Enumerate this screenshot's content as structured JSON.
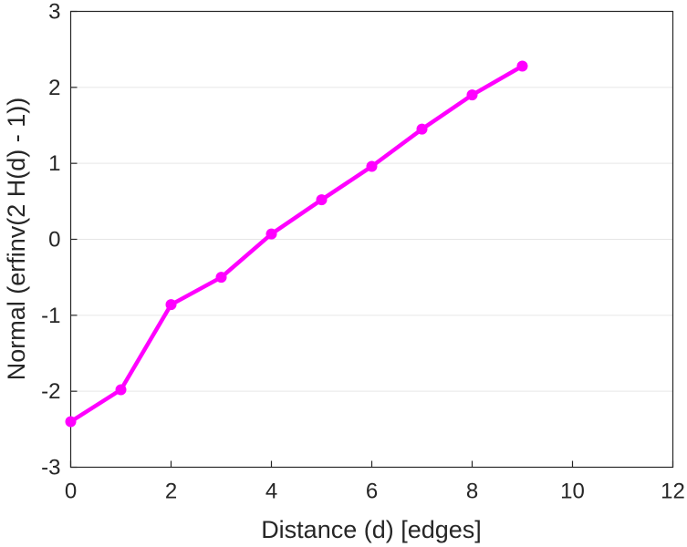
{
  "chart_data": {
    "type": "line",
    "title": "",
    "xlabel": "Distance (d) [edges]",
    "ylabel": "Normal (erfinv(2 H(d) - 1))",
    "xlim": [
      0,
      12
    ],
    "ylim": [
      -3,
      3
    ],
    "xticks": [
      "0",
      "2",
      "4",
      "6",
      "8",
      "10",
      "12"
    ],
    "yticks": [
      "3",
      "2",
      "1",
      "0",
      "-1",
      "-2",
      "-3"
    ],
    "grid": "horizontal",
    "series": [
      {
        "color": "#ff00ff",
        "marker": "circle",
        "x": [
          0,
          1,
          2,
          3,
          4,
          5,
          6,
          7,
          8,
          9
        ],
        "y": [
          -2.4,
          -1.98,
          -0.86,
          -0.5,
          0.07,
          0.52,
          0.96,
          1.45,
          1.9,
          2.28
        ]
      }
    ]
  }
}
